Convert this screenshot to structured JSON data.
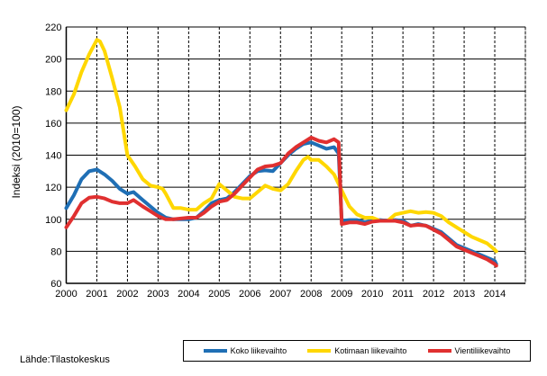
{
  "chart_data": {
    "type": "line",
    "title": "",
    "xlabel": "",
    "ylabel": "Indeksi (2010=100)",
    "xlim": [
      2000,
      2015
    ],
    "ylim": [
      60,
      220
    ],
    "x_ticks": [
      "2000",
      "2001",
      "2002",
      "2003",
      "2004",
      "2005",
      "2006",
      "2007",
      "2008",
      "2009",
      "2010",
      "2011",
      "2012",
      "2013",
      "2014"
    ],
    "y_ticks": [
      "60",
      "80",
      "100",
      "120",
      "140",
      "160",
      "180",
      "200",
      "220"
    ],
    "legend_position": "bottom-right",
    "series": [
      {
        "name": "Koko liikevaihto",
        "color": "#1f6fb5",
        "points": [
          [
            2000,
            107
          ],
          [
            2000.25,
            115
          ],
          [
            2000.5,
            125
          ],
          [
            2000.75,
            130
          ],
          [
            2001,
            131
          ],
          [
            2001.25,
            128
          ],
          [
            2001.5,
            124
          ],
          [
            2001.75,
            119
          ],
          [
            2002,
            116
          ],
          [
            2002.2,
            117
          ],
          [
            2002.5,
            112
          ],
          [
            2002.75,
            108
          ],
          [
            2003,
            104
          ],
          [
            2003.25,
            101
          ],
          [
            2003.5,
            100
          ],
          [
            2003.75,
            100
          ],
          [
            2004,
            100
          ],
          [
            2004.25,
            101
          ],
          [
            2004.5,
            105
          ],
          [
            2004.75,
            110
          ],
          [
            2005,
            112
          ],
          [
            2005.25,
            113
          ],
          [
            2005.5,
            117
          ],
          [
            2005.75,
            122
          ],
          [
            2006,
            127
          ],
          [
            2006.25,
            130
          ],
          [
            2006.5,
            130.5
          ],
          [
            2006.75,
            130
          ],
          [
            2007,
            135
          ],
          [
            2007.25,
            140
          ],
          [
            2007.5,
            144
          ],
          [
            2007.75,
            147
          ],
          [
            2008,
            148
          ],
          [
            2008.25,
            146
          ],
          [
            2008.5,
            144
          ],
          [
            2008.75,
            145
          ],
          [
            2008.9,
            141
          ],
          [
            2009,
            99
          ],
          [
            2009.25,
            99.5
          ],
          [
            2009.5,
            99.5
          ],
          [
            2009.75,
            98
          ],
          [
            2010,
            99
          ],
          [
            2010.25,
            99.5
          ],
          [
            2010.5,
            99
          ],
          [
            2010.75,
            99.5
          ],
          [
            2011,
            99
          ],
          [
            2011.25,
            96
          ],
          [
            2011.5,
            97
          ],
          [
            2011.75,
            96
          ],
          [
            2012,
            94
          ],
          [
            2012.25,
            92
          ],
          [
            2012.5,
            88
          ],
          [
            2012.75,
            84
          ],
          [
            2013,
            82
          ],
          [
            2013.25,
            80
          ],
          [
            2013.5,
            78
          ],
          [
            2013.75,
            76
          ],
          [
            2014,
            74
          ],
          [
            2014.05,
            72
          ]
        ]
      },
      {
        "name": "Kotimaan liikevaihto",
        "color": "#ffd700",
        "points": [
          [
            2000,
            168
          ],
          [
            2000.25,
            178
          ],
          [
            2000.5,
            192
          ],
          [
            2000.75,
            203
          ],
          [
            2001,
            212
          ],
          [
            2001.1,
            211
          ],
          [
            2001.25,
            205
          ],
          [
            2001.5,
            188
          ],
          [
            2001.75,
            170
          ],
          [
            2002,
            140
          ],
          [
            2002.25,
            133
          ],
          [
            2002.5,
            125
          ],
          [
            2002.75,
            121
          ],
          [
            2003,
            120
          ],
          [
            2003.15,
            119
          ],
          [
            2003.25,
            116
          ],
          [
            2003.5,
            107
          ],
          [
            2003.75,
            107
          ],
          [
            2004,
            106
          ],
          [
            2004.25,
            106
          ],
          [
            2004.5,
            110
          ],
          [
            2004.75,
            113
          ],
          [
            2005,
            122
          ],
          [
            2005.25,
            118
          ],
          [
            2005.5,
            114
          ],
          [
            2005.75,
            113
          ],
          [
            2006,
            113
          ],
          [
            2006.25,
            117
          ],
          [
            2006.5,
            121
          ],
          [
            2006.75,
            119
          ],
          [
            2007,
            118
          ],
          [
            2007.25,
            122
          ],
          [
            2007.5,
            130
          ],
          [
            2007.75,
            137
          ],
          [
            2007.9,
            139
          ],
          [
            2008,
            137
          ],
          [
            2008.25,
            137
          ],
          [
            2008.5,
            133
          ],
          [
            2008.75,
            128
          ],
          [
            2009,
            118
          ],
          [
            2009.25,
            108
          ],
          [
            2009.5,
            103
          ],
          [
            2009.75,
            101
          ],
          [
            2010,
            101
          ],
          [
            2010.25,
            99
          ],
          [
            2010.5,
            99
          ],
          [
            2010.75,
            103
          ],
          [
            2011,
            104
          ],
          [
            2011.25,
            105
          ],
          [
            2011.5,
            104
          ],
          [
            2011.75,
            104.5
          ],
          [
            2012,
            104
          ],
          [
            2012.25,
            102
          ],
          [
            2012.5,
            98
          ],
          [
            2012.75,
            95
          ],
          [
            2013,
            92
          ],
          [
            2013.25,
            89
          ],
          [
            2013.5,
            87
          ],
          [
            2013.75,
            85
          ],
          [
            2014,
            81
          ],
          [
            2014.05,
            80
          ]
        ]
      },
      {
        "name": "Vientiliikevaihto",
        "color": "#e03030",
        "points": [
          [
            2000,
            95
          ],
          [
            2000.25,
            102
          ],
          [
            2000.5,
            110
          ],
          [
            2000.75,
            113.5
          ],
          [
            2001,
            114
          ],
          [
            2001.25,
            113
          ],
          [
            2001.5,
            111
          ],
          [
            2001.75,
            110
          ],
          [
            2002,
            110
          ],
          [
            2002.2,
            112
          ],
          [
            2002.5,
            108
          ],
          [
            2002.75,
            105
          ],
          [
            2003,
            102
          ],
          [
            2003.25,
            100
          ],
          [
            2003.5,
            100
          ],
          [
            2003.75,
            100.5
          ],
          [
            2004,
            101
          ],
          [
            2004.25,
            101
          ],
          [
            2004.5,
            104
          ],
          [
            2004.75,
            108
          ],
          [
            2005,
            111
          ],
          [
            2005.25,
            112
          ],
          [
            2005.5,
            116
          ],
          [
            2005.75,
            121
          ],
          [
            2006,
            126
          ],
          [
            2006.25,
            131
          ],
          [
            2006.5,
            133
          ],
          [
            2006.75,
            133.5
          ],
          [
            2007,
            135
          ],
          [
            2007.25,
            141
          ],
          [
            2007.5,
            145
          ],
          [
            2007.75,
            148
          ],
          [
            2008,
            151
          ],
          [
            2008.25,
            149
          ],
          [
            2008.5,
            148
          ],
          [
            2008.75,
            150
          ],
          [
            2008.9,
            148
          ],
          [
            2009,
            97
          ],
          [
            2009.25,
            98
          ],
          [
            2009.5,
            98
          ],
          [
            2009.75,
            97
          ],
          [
            2010,
            98.5
          ],
          [
            2010.25,
            99
          ],
          [
            2010.5,
            99
          ],
          [
            2010.75,
            99
          ],
          [
            2011,
            98
          ],
          [
            2011.25,
            96
          ],
          [
            2011.5,
            96.5
          ],
          [
            2011.75,
            96
          ],
          [
            2012,
            93.5
          ],
          [
            2012.25,
            91
          ],
          [
            2012.5,
            87
          ],
          [
            2012.75,
            83
          ],
          [
            2013,
            81
          ],
          [
            2013.25,
            79
          ],
          [
            2013.5,
            77
          ],
          [
            2013.75,
            75
          ],
          [
            2014,
            72
          ],
          [
            2014.05,
            71
          ]
        ]
      }
    ]
  },
  "source": "Lähde:Tilastokeskus"
}
